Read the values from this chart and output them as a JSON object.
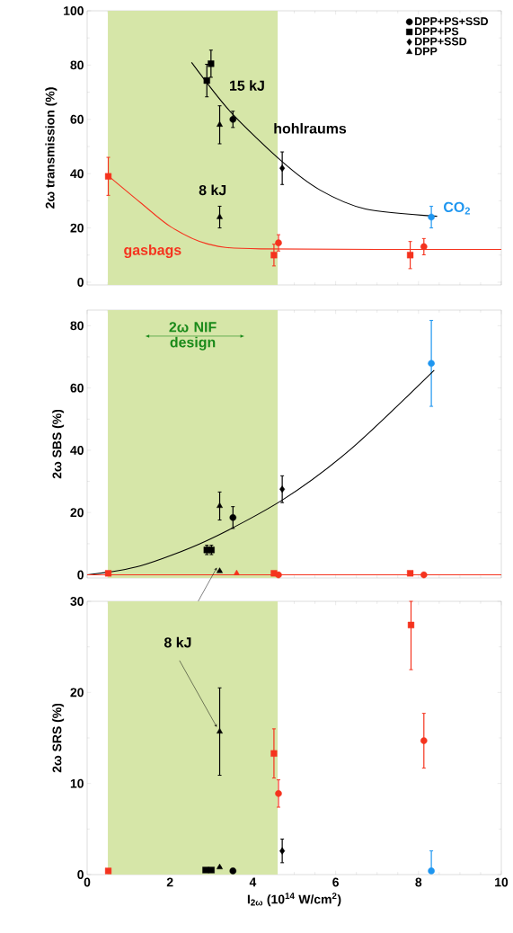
{
  "chart_data": [
    {
      "type": "scatter",
      "ylabel": "2ω transmission (%)",
      "xlim": [
        0,
        10
      ],
      "xticks": [
        0,
        2,
        4,
        6,
        8,
        10
      ],
      "ylim": [
        -1,
        100
      ],
      "yticks": [
        0,
        20,
        40,
        60,
        80,
        100
      ],
      "tick_labels": "y",
      "legend": "top right",
      "grid": false,
      "series": [
        {
          "name": "DPP+PS+SSD",
          "marker": "circle",
          "color": "#000000",
          "x": [
            3.52
          ],
          "values": [
            60
          ],
          "errors": [
            3
          ]
        },
        {
          "name": "DPP+PS",
          "marker": "square",
          "color": "#000000",
          "x": [
            2.89,
            2.99
          ],
          "values": [
            74.3,
            80.5
          ],
          "errors": [
            6,
            5
          ]
        },
        {
          "name": "DPP+SSD",
          "marker": "diamond",
          "color": "#000000",
          "x": [
            4.71
          ],
          "values": [
            42
          ],
          "errors": [
            6
          ]
        },
        {
          "name": "DPP",
          "marker": "triangle",
          "color": "#000000",
          "x": [
            3.2,
            3.2
          ],
          "values": [
            58,
            24
          ],
          "errors": [
            7,
            4
          ]
        },
        {
          "marker": "square",
          "color": "#f5331e",
          "x": [
            0.51,
            4.51,
            7.8
          ],
          "values": [
            39,
            10,
            10
          ],
          "errors": [
            7,
            4,
            5
          ]
        },
        {
          "marker": "circle",
          "color": "#f5331e",
          "x": [
            4.62,
            8.13
          ],
          "values": [
            14.5,
            13.1
          ],
          "errors": [
            3,
            3
          ]
        },
        {
          "marker": "circle",
          "color": "#1e96f0",
          "x": [
            8.31
          ],
          "values": [
            24
          ],
          "errors": [
            4
          ]
        },
        {
          "type": "line",
          "color": "#000000",
          "x": [
            2.52,
            3.46,
            4.71,
            5.63,
            6.72,
            8.45
          ],
          "values": [
            81,
            62.8,
            44.4,
            33.9,
            27,
            24.3
          ]
        },
        {
          "type": "line",
          "color": "#f5331e",
          "x": [
            0.51,
            1.29,
            2.02,
            2.89,
            4.19,
            10
          ],
          "values": [
            39.2,
            29.3,
            20.4,
            14.2,
            12.3,
            12.1
          ]
        }
      ],
      "bands": [
        {
          "axis": "x",
          "from": 0.5,
          "to": 4.6,
          "color": "#d6e6a8"
        }
      ],
      "annotations": [
        {
          "text": "15 kJ",
          "x": 2.99,
          "y": 80.5
        },
        {
          "text": "8 kJ",
          "x": 3.2,
          "y": 24
        },
        {
          "text": "hohlraums",
          "x": 4.03,
          "y": 54
        },
        {
          "text": "gasbags",
          "x": 1.58,
          "y": 24
        },
        {
          "text": "CO$_{2}$",
          "x": 8.31,
          "y": 24
        }
      ]
    },
    {
      "type": "scatter",
      "ylabel": "2ω SBS (%)",
      "xlim": [
        0,
        10
      ],
      "xticks": [
        0,
        2,
        4,
        6,
        8,
        10
      ],
      "ylim": [
        -1,
        85
      ],
      "yticks": [
        0,
        20,
        40,
        60,
        80
      ],
      "tick_labels": "y",
      "grid": false,
      "series": [
        {
          "marker": "circle",
          "color": "#000000",
          "x": [
            3.52
          ],
          "values": [
            18.4
          ],
          "errors": [
            3.5
          ]
        },
        {
          "marker": "square",
          "color": "#000000",
          "x": [
            2.89,
            3.0
          ],
          "values": [
            8,
            8
          ],
          "errors": [
            1.5,
            1.5
          ]
        },
        {
          "marker": "diamond",
          "color": "#000000",
          "x": [
            4.71
          ],
          "values": [
            27.5
          ],
          "errors": [
            4.3
          ]
        },
        {
          "marker": "triangle",
          "color": "#000000",
          "x": [
            3.2,
            3.2
          ],
          "values": [
            22.1,
            1.2
          ],
          "errors": [
            4.5,
            null
          ]
        },
        {
          "marker": "square",
          "color": "#f5331e",
          "x": [
            0.51,
            4.51,
            7.8
          ],
          "values": [
            0.5,
            0.5,
            0.5
          ]
        },
        {
          "marker": "triangle",
          "color": "#f5331e",
          "x": [
            3.61
          ],
          "values": [
            0.5
          ]
        },
        {
          "marker": "circle",
          "color": "#f5331e",
          "x": [
            4.62,
            8.13
          ],
          "values": [
            0,
            0
          ]
        },
        {
          "marker": "circle",
          "color": "#1e96f0",
          "x": [
            8.31
          ],
          "values": [
            67.9
          ],
          "errors": [
            13.8
          ]
        },
        {
          "type": "line",
          "color": "#000000",
          "x": [
            0,
            1.29,
            2.89,
            4.71,
            6.36,
            8.38
          ],
          "values": [
            0,
            2.9,
            11,
            24,
            40.3,
            65.7
          ]
        },
        {
          "type": "line",
          "color": "#f5331e",
          "x": [
            0,
            10
          ],
          "values": [
            0,
            0
          ]
        }
      ],
      "bands": [
        {
          "axis": "x",
          "from": 0.5,
          "to": 4.6,
          "color": "#d6e6a8",
          "label": "2ω NIF design"
        }
      ]
    },
    {
      "type": "scatter",
      "ylabel": "2ω SRS (%)",
      "xlabel": "I$_{2ω}$ (10$^{14}$ W/cm$^{2}$)",
      "xlim": [
        0,
        10
      ],
      "xticks": [
        0,
        2,
        4,
        6,
        8,
        10
      ],
      "ylim": [
        0,
        30
      ],
      "yticks": [
        0,
        10,
        20,
        30
      ],
      "grid": false,
      "series": [
        {
          "marker": "circle",
          "color": "#000000",
          "x": [
            3.52
          ],
          "values": [
            0.4
          ]
        },
        {
          "marker": "square",
          "color": "#000000",
          "x": [
            2.86,
            3.0
          ],
          "values": [
            0.5,
            0.5
          ]
        },
        {
          "marker": "diamond",
          "color": "#000000",
          "x": [
            4.71
          ],
          "values": [
            2.6
          ],
          "errors": [
            1.3
          ]
        },
        {
          "marker": "triangle",
          "color": "#000000",
          "x": [
            3.2,
            3.2
          ],
          "values": [
            15.7,
            0.8
          ],
          "errors": [
            4.8,
            null
          ]
        },
        {
          "marker": "square",
          "color": "#f5331e",
          "x": [
            0.51,
            4.51,
            7.82
          ],
          "values": [
            0.4,
            13.3,
            27.4
          ],
          "errors": [
            null,
            2.7,
            [
              22.5,
              30
            ]
          ]
        },
        {
          "marker": "circle",
          "color": "#f5331e",
          "x": [
            4.62,
            8.13
          ],
          "values": [
            8.9,
            14.7
          ],
          "errors": [
            1.5,
            3
          ]
        },
        {
          "marker": "circle",
          "color": "#1e96f0",
          "x": [
            8.31
          ],
          "values": [
            0.4
          ],
          "errors": [
            [
              0.4,
              2.6
            ]
          ]
        }
      ],
      "bands": [
        {
          "axis": "x",
          "from": 0.5,
          "to": 4.6,
          "color": "#d6e6a8"
        }
      ],
      "annotations": [
        {
          "text": "8 kJ",
          "x": 3.2,
          "y": 15.7
        }
      ]
    }
  ]
}
